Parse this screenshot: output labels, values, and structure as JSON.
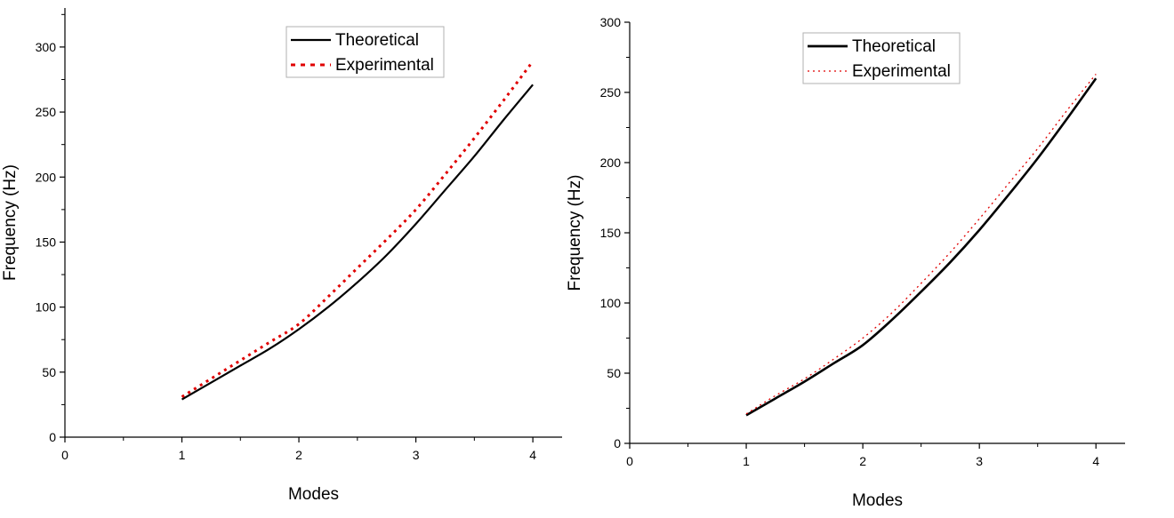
{
  "chart_data": [
    {
      "type": "line",
      "xlabel": "Modes",
      "ylabel": "Frequency (Hz)",
      "xlim": [
        0,
        4.25
      ],
      "ylim": [
        0,
        330
      ],
      "xticks": [
        0,
        1,
        2,
        3,
        4
      ],
      "yticks": [
        0,
        50,
        100,
        150,
        200,
        250,
        300
      ],
      "x_minor_step": 0.5,
      "y_minor_step": 25,
      "legend_position": "top-right",
      "series": [
        {
          "name": "Theoretical",
          "style": "solid",
          "color": "#000000",
          "x": [
            1,
            1.25,
            1.5,
            1.75,
            2,
            2.25,
            2.5,
            2.75,
            3,
            3.25,
            3.5,
            3.75,
            4
          ],
          "y": [
            29,
            42,
            55,
            68,
            83,
            100,
            119,
            140,
            164,
            190,
            216,
            244,
            271
          ]
        },
        {
          "name": "Experimental",
          "style": "dotted",
          "color": "#e00000",
          "x": [
            1,
            1.25,
            1.5,
            1.75,
            2,
            2.25,
            2.5,
            2.75,
            3,
            3.25,
            3.5,
            3.75,
            4
          ],
          "y": [
            31,
            45,
            59,
            73,
            87,
            108,
            130,
            152,
            175,
            202,
            230,
            259,
            289
          ]
        }
      ]
    },
    {
      "type": "line",
      "xlabel": "Modes",
      "ylabel": "Frequency (Hz)",
      "xlim": [
        0,
        4.25
      ],
      "ylim": [
        0,
        300
      ],
      "xticks": [
        0,
        1,
        2,
        3,
        4
      ],
      "yticks": [
        0,
        50,
        100,
        150,
        200,
        250,
        300
      ],
      "x_minor_step": 0.5,
      "y_minor_step": 25,
      "legend_position": "top-right",
      "series": [
        {
          "name": "Theoretical",
          "style": "solid",
          "color": "#000000",
          "x": [
            1,
            1.25,
            1.5,
            1.75,
            2,
            2.25,
            2.5,
            2.75,
            3,
            3.25,
            3.5,
            3.75,
            4
          ],
          "y": [
            20,
            32,
            44,
            57,
            70,
            88,
            108,
            129,
            152,
            177,
            203,
            231,
            260
          ]
        },
        {
          "name": "Experimental",
          "style": "dotted",
          "color": "#e00000",
          "x": [
            1,
            1.25,
            1.5,
            1.75,
            2,
            2.25,
            2.5,
            2.75,
            3,
            3.25,
            3.5,
            3.75,
            4
          ],
          "y": [
            21,
            34,
            46,
            60,
            75,
            93,
            114,
            136,
            160,
            185,
            210,
            237,
            263
          ]
        }
      ]
    }
  ]
}
